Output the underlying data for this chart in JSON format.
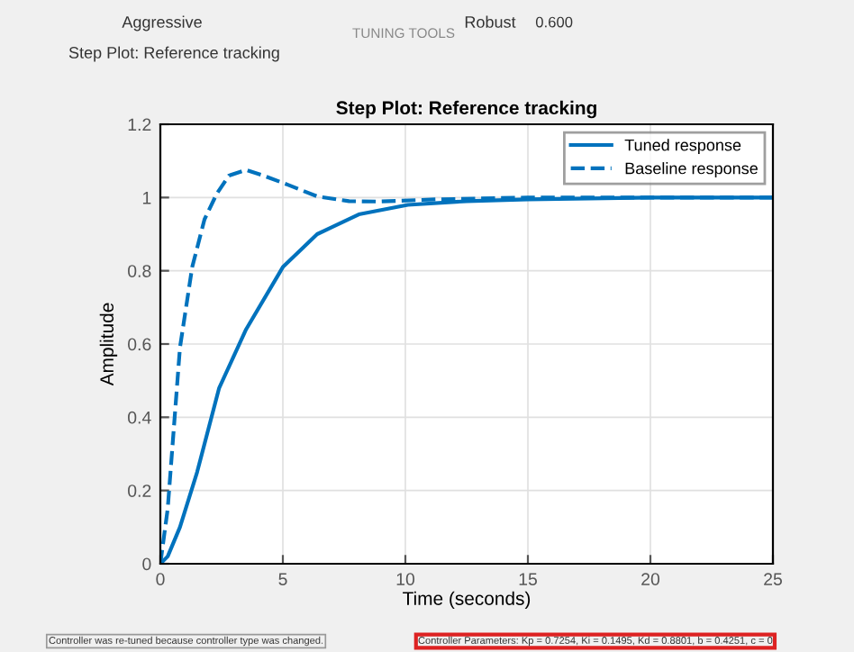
{
  "chart_data": {
    "type": "line",
    "title": "Step Plot: Reference tracking",
    "xlabel": "Time (seconds)",
    "ylabel": "Amplitude",
    "xlim": [
      0,
      25
    ],
    "ylim": [
      0,
      1.2
    ],
    "xticks": [
      0,
      5,
      10,
      15,
      20,
      25
    ],
    "yticks": [
      0,
      0.2,
      0.4,
      0.6,
      0.8,
      1,
      1.2
    ],
    "grid": true,
    "legend": "top right",
    "series": [
      {
        "name": "Tuned response",
        "color": "#0072bd",
        "line_style": "solid",
        "x": [
          0,
          0.3,
          0.8,
          1.5,
          2.4,
          3.5,
          5,
          6.4,
          8.1,
          10.1,
          12.5,
          15,
          20,
          25
        ],
        "values": [
          0,
          0.02,
          0.1,
          0.25,
          0.48,
          0.64,
          0.81,
          0.9,
          0.954,
          0.98,
          0.99,
          0.995,
          1,
          1
        ]
      },
      {
        "name": "Baseline response",
        "color": "#0072bd",
        "line_style": "dashed",
        "x": [
          0,
          0.3,
          0.8,
          1.3,
          1.8,
          2.3,
          2.8,
          3.5,
          4.2,
          5.2,
          6.4,
          7.7,
          8.9,
          11.3,
          15,
          20,
          25
        ],
        "values": [
          0,
          0.15,
          0.59,
          0.81,
          0.94,
          1.01,
          1.06,
          1.075,
          1.06,
          1.035,
          1.003,
          0.99,
          0.989,
          0.995,
          1,
          1,
          1
        ]
      }
    ],
    "annotations": [
      "Controller was re-tuned because controller type was changed.",
      "Controller Parameters: Kp = 0.7254, Ki = 0.1495, Kd = 0.8801, b = 0.4251, c = 0",
      "Step Plot: Reference tracking",
      "Aggressive",
      "Robust",
      "0.600",
      "TUNING TOOLS"
    ]
  }
}
